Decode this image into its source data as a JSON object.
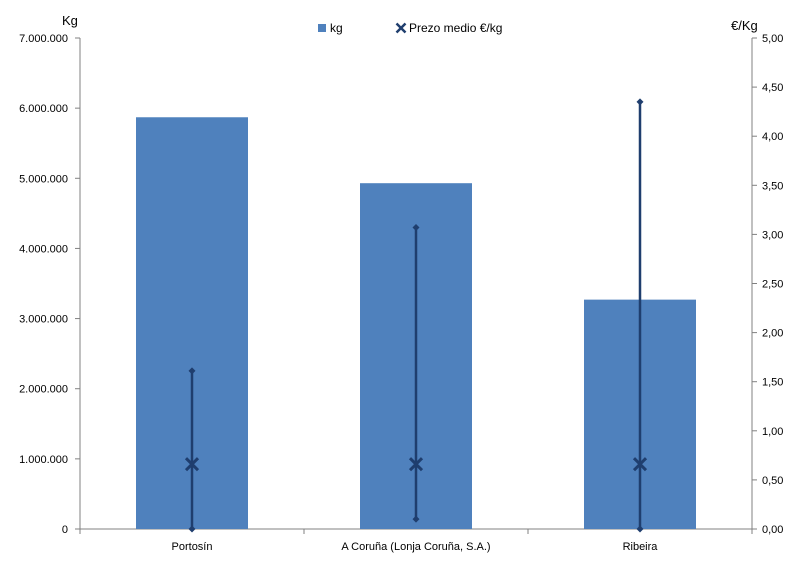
{
  "chart_data": {
    "type": "bar",
    "categories": [
      "Portosín",
      "A Coruña (Lonja Coruña, S.A.)",
      "Ribeira"
    ],
    "series": [
      {
        "name": "kg",
        "axis": "left",
        "values": [
          5870000,
          4930000,
          3270000
        ]
      },
      {
        "name": "Prezo medio €/kg",
        "axis": "right",
        "type": "scatter",
        "marker": "x",
        "values": [
          0.66,
          0.66,
          0.66
        ],
        "min": [
          0.0,
          0.1,
          0.0
        ],
        "max": [
          1.61,
          3.07,
          4.35
        ]
      }
    ],
    "y_left": {
      "label": "Kg",
      "ylim": [
        0,
        7000000
      ],
      "ticks": [
        "0",
        "1.000.000",
        "2.000.000",
        "3.000.000",
        "4.000.000",
        "5.000.000",
        "6.000.000",
        "7.000.000"
      ]
    },
    "y_right": {
      "label": "€/Kg",
      "ylim": [
        0,
        5
      ],
      "ticks": [
        "0,00",
        "0,50",
        "1,00",
        "1,50",
        "2,00",
        "2,50",
        "3,00",
        "3,50",
        "4,00",
        "4,50",
        "5,00"
      ]
    },
    "legend": {
      "position": "top",
      "entries": [
        "kg",
        "Prezo medio €/kg"
      ]
    },
    "grid": false,
    "colors": {
      "bar": "#4f81bd",
      "price": "#1f3e6e",
      "axis": "#808080"
    }
  }
}
